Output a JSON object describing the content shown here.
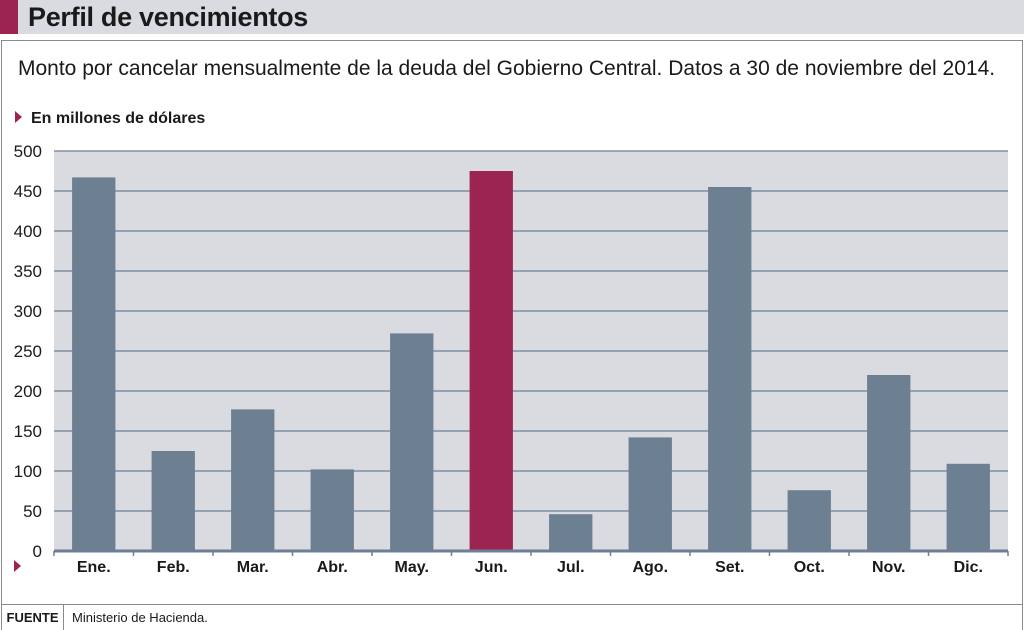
{
  "header": {
    "title": "Perfil de vencimientos",
    "subtitle": "Monto por cancelar mensualmente de la deuda del Gobierno Central. Datos a 30 de noviembre del 2014.",
    "unit": "En millones de dólares"
  },
  "footer": {
    "label": "FUENTE",
    "source": "Ministerio de Hacienda."
  },
  "colors": {
    "bar": "#6c8092",
    "highlight": "#9b2550",
    "plot_background": "#d9dbe0",
    "gridline": "#6c7f96",
    "accent": "#9b2550"
  },
  "chart_data": {
    "type": "bar",
    "categories": [
      "Ene.",
      "Feb.",
      "Mar.",
      "Abr.",
      "May.",
      "Jun.",
      "Jul.",
      "Ago.",
      "Set.",
      "Oct.",
      "Nov.",
      "Dic."
    ],
    "values": [
      467,
      125,
      177,
      102,
      272,
      475,
      46,
      142,
      455,
      76,
      220,
      109
    ],
    "highlight_category": "Jun.",
    "ylim": [
      0,
      500
    ],
    "yticks": [
      0,
      50,
      100,
      150,
      200,
      250,
      300,
      350,
      400,
      450,
      500
    ],
    "ylabel": "En millones de dólares",
    "xlabel": "",
    "grid": true,
    "legend": "none"
  }
}
